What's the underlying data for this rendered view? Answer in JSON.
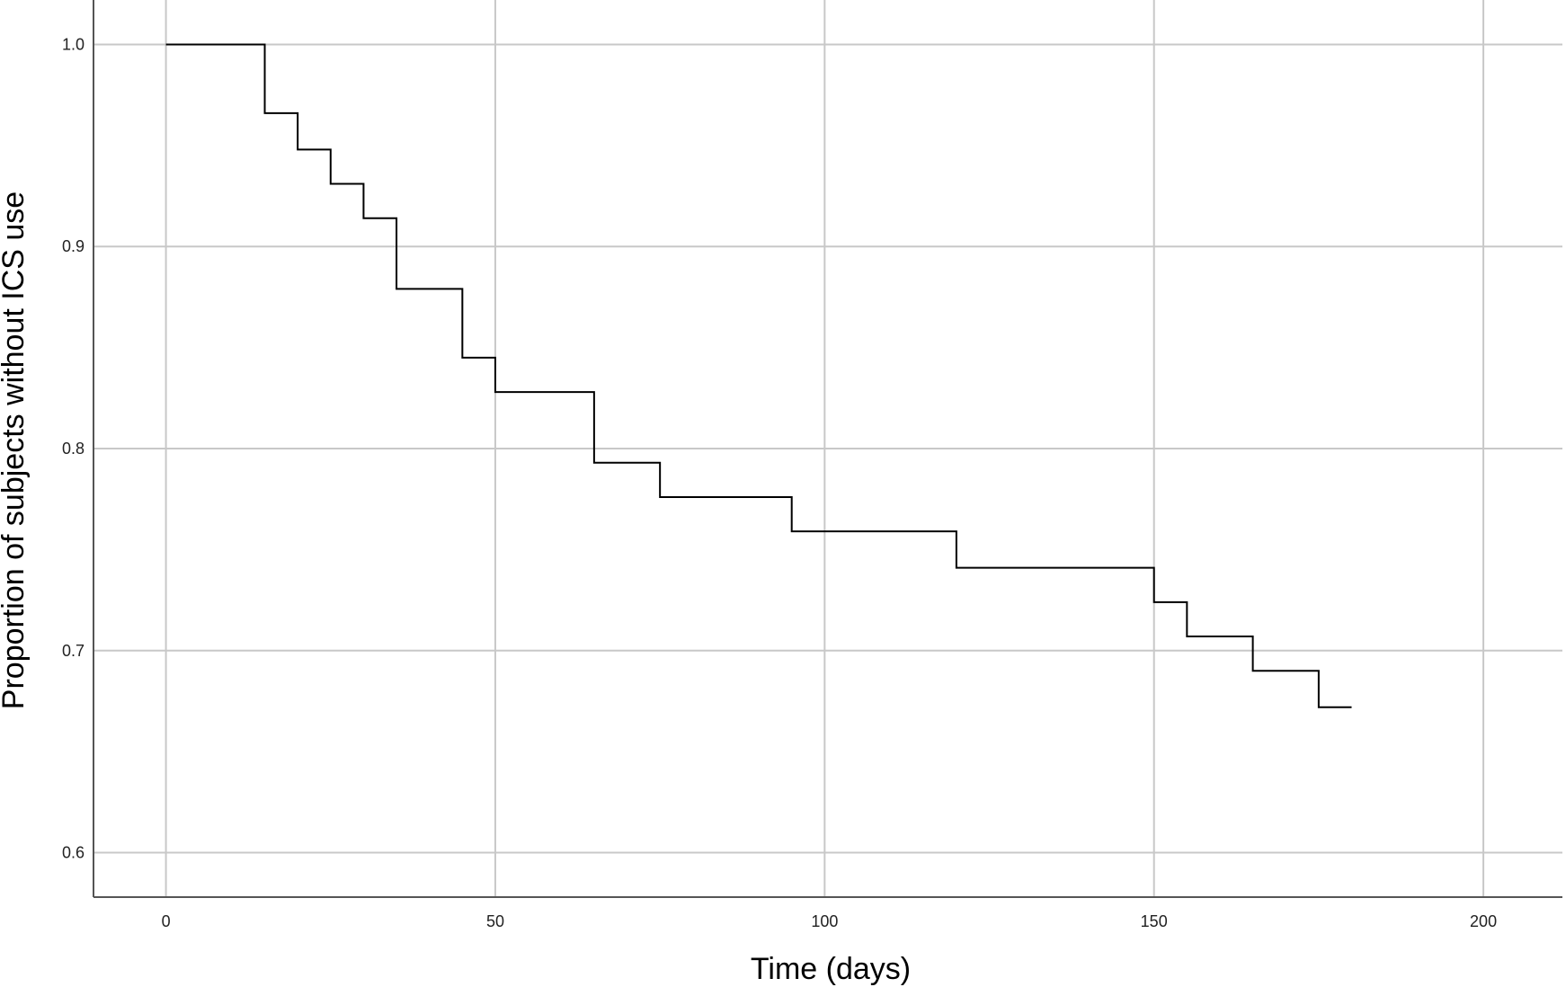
{
  "chart_data": {
    "type": "line",
    "subtype": "step",
    "title": "",
    "xlabel": "Time (days)",
    "ylabel": "Proportion of subjects without ICS use",
    "xlim": [
      -11,
      212
    ],
    "ylim": [
      0.578,
      1.022
    ],
    "xticks": [
      0,
      50,
      100,
      150,
      200
    ],
    "yticks": [
      0.6,
      0.7,
      0.8,
      0.9,
      1.0
    ],
    "xtick_labels": [
      "0",
      "50",
      "100",
      "150",
      "200"
    ],
    "ytick_labels": [
      "0.6",
      "0.7",
      "0.8",
      "0.9",
      "1.0"
    ],
    "grid": true,
    "legend": "none",
    "series": [
      {
        "color": "#000000",
        "x": [
          0,
          15,
          20,
          25,
          30,
          35,
          45,
          50,
          65,
          75,
          95,
          120,
          150,
          155,
          165,
          175,
          180
        ],
        "y": [
          1.0,
          0.966,
          0.948,
          0.931,
          0.914,
          0.879,
          0.845,
          0.828,
          0.793,
          0.776,
          0.759,
          0.741,
          0.724,
          0.707,
          0.69,
          0.672,
          0.672
        ]
      }
    ],
    "colors": {
      "grid": "#c8c8c8",
      "axis": "#555555",
      "line": "#000000"
    }
  }
}
